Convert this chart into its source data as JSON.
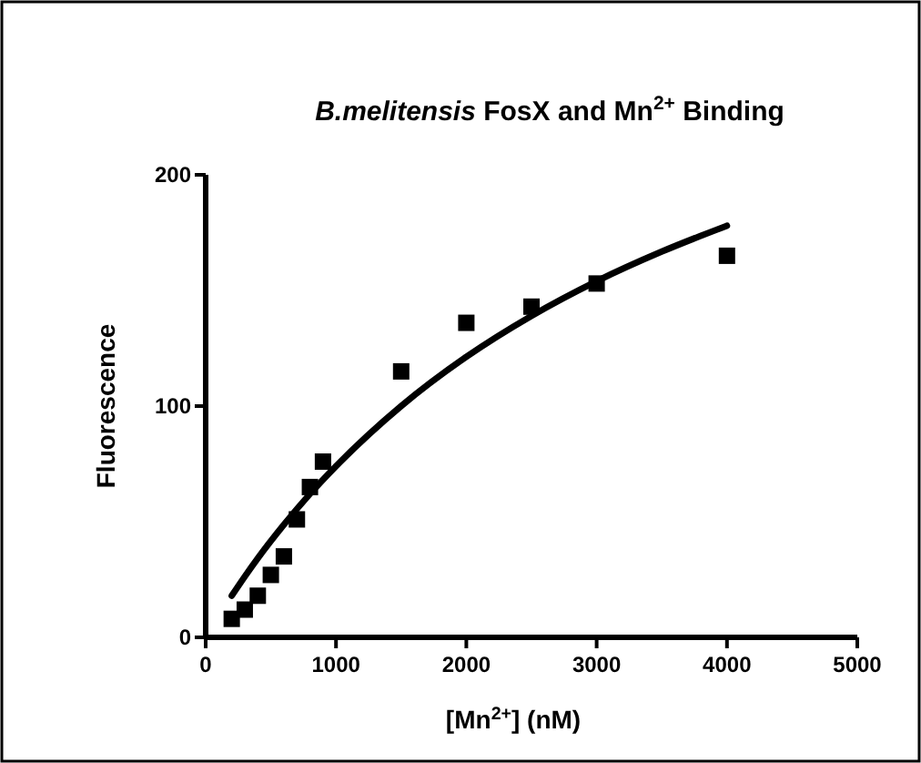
{
  "chart_data": {
    "type": "scatter",
    "title": "B.melitensis FosX and Mn$^{2+}$ Binding",
    "xlabel": "[Mn$^{2+}$] (nM)",
    "ylabel": "Fluorescence",
    "xlim": [
      0,
      5000
    ],
    "xticks": [
      0,
      1000,
      2000,
      3000,
      4000,
      5000
    ],
    "ylim": [
      0,
      200
    ],
    "yticks": [
      0,
      100,
      200
    ],
    "marker": "square",
    "series": [
      {
        "color": "#000000",
        "x": [
          200,
          300,
          400,
          500,
          600,
          700,
          800,
          900,
          1500,
          2000,
          2500,
          3000,
          4000
        ],
        "values": [
          8,
          12,
          18,
          27,
          35,
          51,
          65,
          76,
          115,
          136,
          143,
          153,
          165
        ]
      },
      {
        "type": "line",
        "color": "#000000",
        "line_style": "solid",
        "marker": "none",
        "x": [
          200,
          300,
          400,
          600,
          800,
          1000,
          1500,
          2000,
          2500,
          3000,
          3500,
          4000
        ],
        "values": [
          18,
          26.3,
          34.2,
          48.7,
          62,
          74,
          100,
          121.3,
          139,
          154,
          166.8,
          178
        ]
      }
    ]
  }
}
